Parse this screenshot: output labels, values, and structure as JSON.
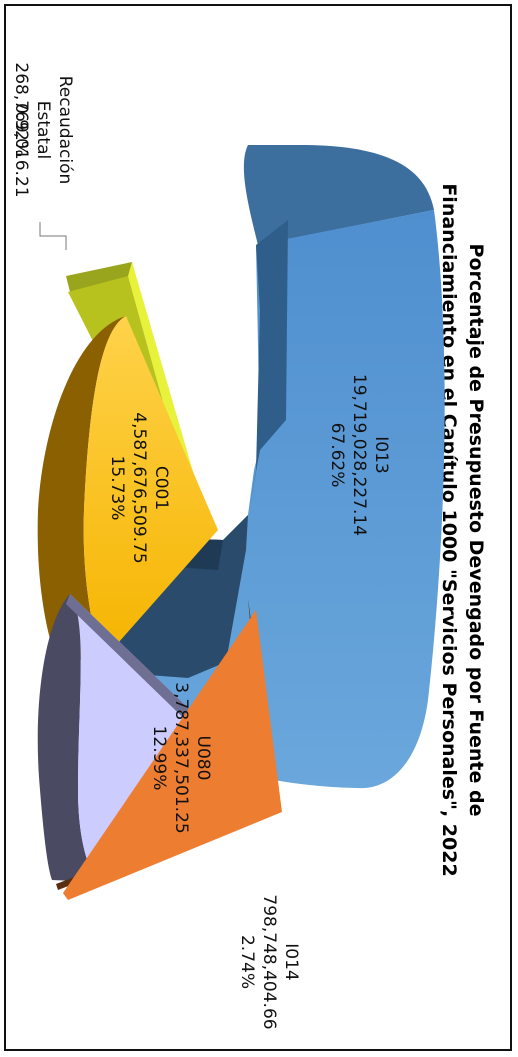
{
  "chart_data": {
    "type": "pie",
    "title": "Porcentaje de Presupuesto Devengado por Fuente de Financiamiento en el Capítulo 1000 \"Servicios Personales\", 2022",
    "title_lines": [
      "Porcentaje de Presupuesto Devengado por Fuente de",
      "Financiamiento en el Capítulo 1000 \"Servicios Personales\", 2022"
    ],
    "three_d": true,
    "legend": "none",
    "slices": [
      {
        "name": "I013",
        "amount": "19,719,028,227.14",
        "value": 67.62,
        "percent": "67.62%",
        "color": "#5b9bd5",
        "exploded": false
      },
      {
        "name": "I014",
        "amount": "798,748,404.66",
        "value": 2.74,
        "percent": "2.74%",
        "color": "#ed7d31",
        "exploded": true
      },
      {
        "name": "U080",
        "amount": "3,787,337,501.25",
        "value": 12.99,
        "percent": "12.99%",
        "color": "#ccccff",
        "exploded": true
      },
      {
        "name": "C001",
        "amount": "4,587,676,509.75",
        "value": 15.73,
        "percent": "15.73%",
        "color": "#ffc000",
        "exploded": true
      },
      {
        "name": "Recaudación Estatal",
        "label_lines": [
          "Recaudación",
          "Estatal"
        ],
        "amount": "268,769,016.21",
        "value": 0.92,
        "percent": "0.92%",
        "color": "#e8f23a",
        "exploded": true
      }
    ]
  }
}
